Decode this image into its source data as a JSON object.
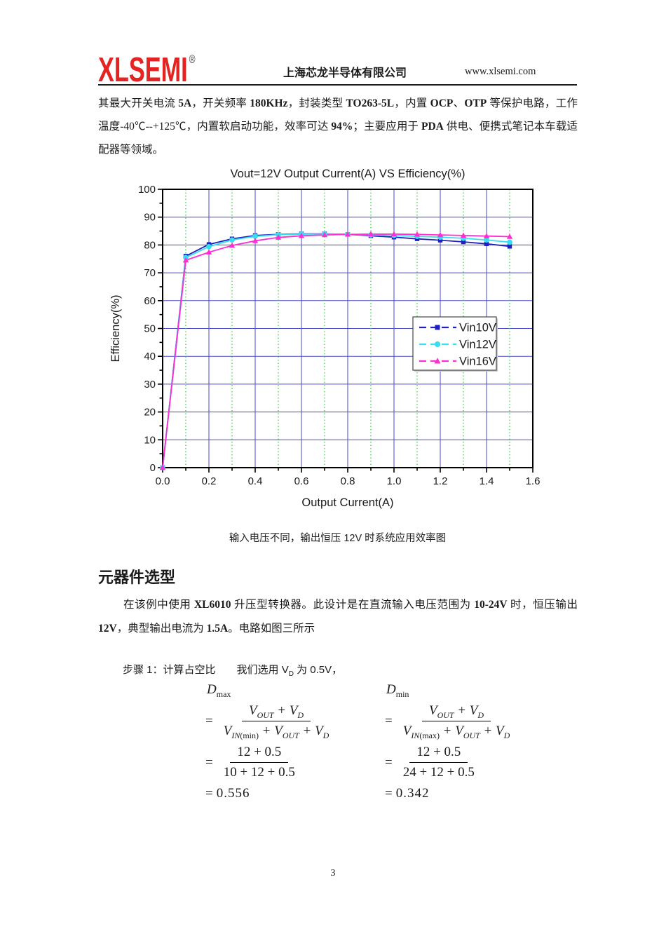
{
  "header": {
    "logo": "XLSEMI",
    "registered": "®",
    "company": "上海芯龙半导体有限公司",
    "website": "www.xlsemi.com"
  },
  "intro": {
    "segments": [
      {
        "t": "其最大开关电流 "
      },
      {
        "t": "5A",
        "b": true
      },
      {
        "t": "，开关频率 "
      },
      {
        "t": "180KHz",
        "b": true
      },
      {
        "t": "，封装类型 "
      },
      {
        "t": "TO263-5L",
        "b": true
      },
      {
        "t": "，内置 "
      },
      {
        "t": "OCP",
        "b": true
      },
      {
        "t": "、"
      },
      {
        "t": "OTP",
        "b": true
      },
      {
        "t": " 等保护电路，工作温度-40℃--+125℃，内置软启动功能，效率可达 "
      },
      {
        "t": "94%",
        "b": true
      },
      {
        "t": "；主要应用于 "
      },
      {
        "t": "PDA",
        "b": true
      },
      {
        "t": " 供电、便携式笔记本车载适配器等领域。"
      }
    ]
  },
  "chart_caption": "输入电压不同，输出恒压 12V 时系统应用效率图",
  "section": {
    "heading": "元器件选型",
    "segments": [
      {
        "t": "在该例中使用 "
      },
      {
        "t": "XL6010",
        "b": true
      },
      {
        "t": " 升压型转换器。此设计是在直流输入电压范围为 "
      },
      {
        "t": "10-24V",
        "b": true
      },
      {
        "t": " 时，恒压输出 "
      },
      {
        "t": "12V",
        "b": true
      },
      {
        "t": "，典型输出电流为 "
      },
      {
        "t": "1.5A",
        "b": true
      },
      {
        "t": "。电路如图三所示"
      }
    ]
  },
  "step1": {
    "label": "步骤 1：计算占空比",
    "lead": "我们选用 ",
    "var_base": "V",
    "var_sub": "D",
    "tail": " 为 0.5V，"
  },
  "formulas": [
    {
      "name": "Dmax",
      "head_base": "D",
      "head_sub": "max",
      "sym_num": [
        {
          "v": "V",
          "s": "OUT"
        },
        {
          "op": "+"
        },
        {
          "v": "V",
          "s": "D"
        }
      ],
      "sym_den": [
        {
          "v": "V",
          "s": "IN(min)"
        },
        {
          "op": "+"
        },
        {
          "v": "V",
          "s": "OUT"
        },
        {
          "op": "+"
        },
        {
          "v": "V",
          "s": "D"
        }
      ],
      "num_num": "12 + 0.5",
      "num_den": "10 + 12 + 0.5",
      "result": "0.556"
    },
    {
      "name": "Dmin",
      "head_base": "D",
      "head_sub": "min",
      "sym_num": [
        {
          "v": "V",
          "s": "OUT"
        },
        {
          "op": "+"
        },
        {
          "v": "V",
          "s": "D"
        }
      ],
      "sym_den": [
        {
          "v": "V",
          "s": "IN(max)"
        },
        {
          "op": "+"
        },
        {
          "v": "V",
          "s": "OUT"
        },
        {
          "op": "+"
        },
        {
          "v": "V",
          "s": "D"
        }
      ],
      "num_num": "12 + 0.5",
      "num_den": "24 + 12 + 0.5",
      "result": "0.342"
    }
  ],
  "chart_data": {
    "type": "line",
    "title": "Vout=12V Output Current(A) VS Efficiency(%)",
    "xlabel": "Output Current(A)",
    "ylabel": "Efficiency(%)",
    "xlim": [
      0,
      1.6
    ],
    "ylim": [
      0,
      100
    ],
    "x_tick_labels": [
      "0.0",
      "0.2",
      "0.4",
      "0.6",
      "0.8",
      "1.0",
      "1.2",
      "1.4",
      "1.6"
    ],
    "x_tick_step": 0.2,
    "y_ticks": [
      0,
      10,
      20,
      30,
      40,
      50,
      60,
      70,
      80,
      90,
      100
    ],
    "grid": {
      "major_color": "#4a4ac8",
      "minor_color": "#33cc33",
      "minor_style": "dotted"
    },
    "legend_position": "inside-right",
    "x": [
      0,
      0.1,
      0.2,
      0.3,
      0.4,
      0.5,
      0.6,
      0.7,
      0.8,
      0.9,
      1.0,
      1.1,
      1.2,
      1.3,
      1.4,
      1.5
    ],
    "series": [
      {
        "name": "Vin10V",
        "color": "#2020c0",
        "marker": "square",
        "values": [
          0,
          76,
          80.2,
          82.2,
          83.4,
          83.8,
          84,
          84,
          83.8,
          83.3,
          82.8,
          82.2,
          81.7,
          81.1,
          80.4,
          79.5
        ]
      },
      {
        "name": "Vin12V",
        "color": "#35dff0",
        "marker": "circle",
        "values": [
          0,
          75.5,
          79.4,
          81.8,
          83.1,
          83.7,
          83.9,
          83.9,
          83.8,
          83.6,
          83.4,
          83.1,
          82.8,
          82.4,
          81.8,
          81
        ]
      },
      {
        "name": "Vin16V",
        "color": "#ff2ed2",
        "marker": "triangle",
        "values": [
          0,
          74.5,
          77.4,
          79.8,
          81.5,
          82.7,
          83.3,
          83.6,
          83.8,
          83.9,
          83.9,
          83.8,
          83.6,
          83.4,
          83.2,
          83
        ]
      }
    ]
  },
  "page": {
    "number": "3"
  }
}
